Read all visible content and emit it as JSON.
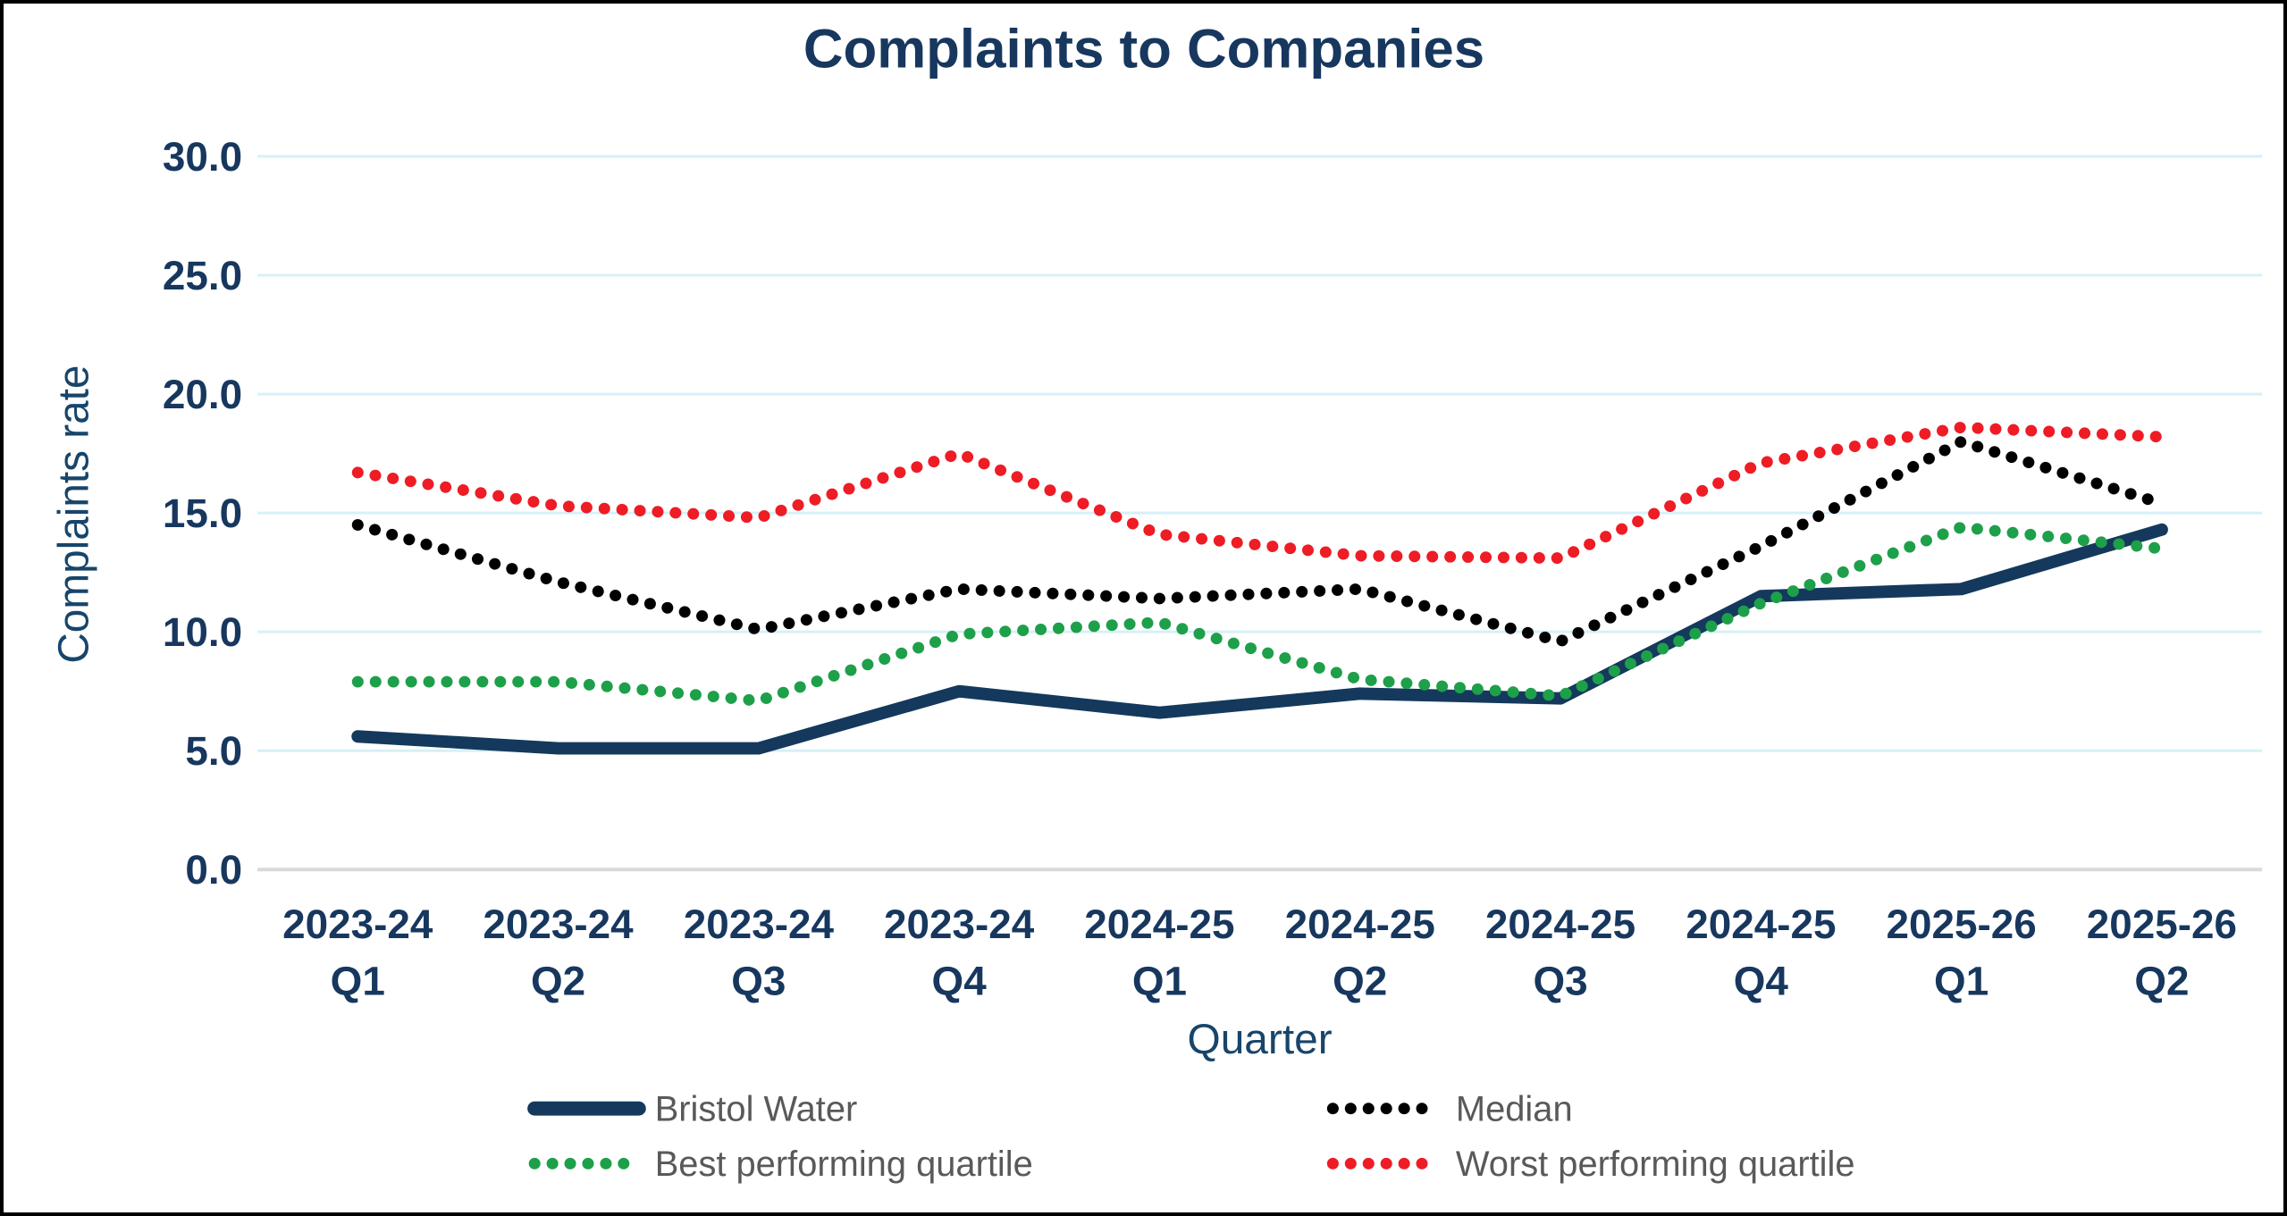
{
  "page": {
    "background": "#FFFFFF",
    "border_color": "#000000"
  },
  "chart_data": {
    "type": "line",
    "title": "Complaints to Companies",
    "xlabel": "Quarter",
    "ylabel": "Complaints rate",
    "ylim": [
      0,
      30
    ],
    "ytick_step": 5,
    "ytick_labels": [
      "0.0",
      "5.0",
      "10.0",
      "15.0",
      "20.0",
      "25.0",
      "30.0"
    ],
    "grid": true,
    "legend_position": "bottom",
    "categories": [
      {
        "year": "2023-24",
        "quarter": "Q1"
      },
      {
        "year": "2023-24",
        "quarter": "Q2"
      },
      {
        "year": "2023-24",
        "quarter": "Q3"
      },
      {
        "year": "2023-24",
        "quarter": "Q4"
      },
      {
        "year": "2024-25",
        "quarter": "Q1"
      },
      {
        "year": "2024-25",
        "quarter": "Q2"
      },
      {
        "year": "2024-25",
        "quarter": "Q3"
      },
      {
        "year": "2024-25",
        "quarter": "Q4"
      },
      {
        "year": "2025-26",
        "quarter": "Q1"
      },
      {
        "year": "2025-26",
        "quarter": "Q2"
      }
    ],
    "series": [
      {
        "name": "Bristol Water",
        "style": "solid",
        "color": "#14395C",
        "values": [
          5.6,
          5.1,
          5.1,
          7.5,
          6.6,
          7.4,
          7.2,
          11.5,
          11.8,
          14.3
        ]
      },
      {
        "name": "Median",
        "style": "dotted",
        "color": "#000000",
        "values": [
          14.5,
          12.1,
          10.1,
          11.8,
          11.4,
          11.8,
          9.6,
          13.6,
          18.0,
          15.4
        ]
      },
      {
        "name": "Best performing quartile",
        "style": "dotted",
        "color": "#1DA049",
        "values": [
          7.9,
          7.9,
          7.1,
          9.9,
          10.4,
          8.0,
          7.3,
          11.2,
          14.4,
          13.5
        ]
      },
      {
        "name": "Worst performing quartile",
        "style": "dotted",
        "color": "#EE1C25",
        "values": [
          16.7,
          15.3,
          14.8,
          17.5,
          14.1,
          13.2,
          13.1,
          17.1,
          18.6,
          18.2
        ]
      }
    ],
    "colors": {
      "gridline": "#D6F0F7",
      "axis_line": "#D9D9D9",
      "title_text": "#17375E",
      "tick_text": "#17375E",
      "axis_title_text": "#17456B",
      "legend_text": "#595959"
    }
  }
}
